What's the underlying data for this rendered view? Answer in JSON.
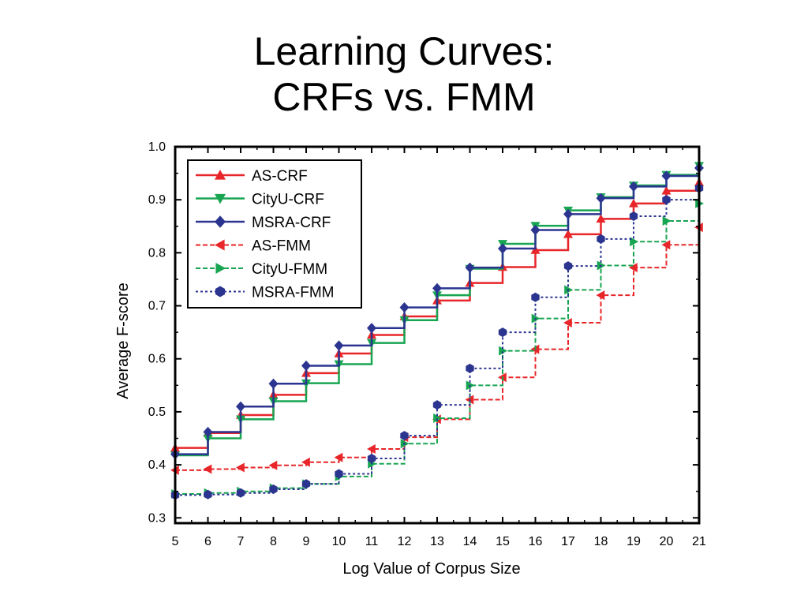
{
  "slide": {
    "title_line1": "Learning Curves:",
    "title_line2": "CRFs vs. FMM"
  },
  "chart_data": {
    "type": "line",
    "title": "",
    "xlabel": "Log Value of Corpus Size",
    "ylabel": "Average F-score",
    "xlim": [
      5,
      21
    ],
    "ylim": [
      0.3,
      1.0
    ],
    "xticks": [
      5,
      6,
      7,
      8,
      9,
      10,
      11,
      12,
      13,
      14,
      15,
      16,
      17,
      18,
      19,
      20,
      21
    ],
    "yticks": [
      0.3,
      0.4,
      0.5,
      0.6,
      0.7,
      0.8,
      0.9,
      1.0
    ],
    "ytick_labels": [
      "0.3",
      "0.4",
      "0.5",
      "0.6",
      "0.7",
      "0.8",
      "0.9",
      "1.0"
    ],
    "step_style": "stairs",
    "legend_position": "top-left",
    "grid": false,
    "x": [
      5,
      6,
      7,
      8,
      9,
      10,
      11,
      12,
      13,
      14,
      15,
      16,
      17,
      18,
      19,
      20,
      21
    ],
    "series": [
      {
        "name": "AS-CRF",
        "color": "#e8262a",
        "dash": "solid",
        "marker": "triangle-up",
        "values": [
          0.432,
          0.46,
          0.494,
          0.532,
          0.573,
          0.61,
          0.645,
          0.68,
          0.71,
          0.743,
          0.773,
          0.805,
          0.835,
          0.864,
          0.893,
          0.917,
          0.933
        ]
      },
      {
        "name": "CityU-CRF",
        "color": "#18a552",
        "dash": "solid",
        "marker": "triangle-down",
        "values": [
          0.418,
          0.45,
          0.486,
          0.52,
          0.554,
          0.59,
          0.63,
          0.673,
          0.72,
          0.77,
          0.817,
          0.851,
          0.88,
          0.905,
          0.927,
          0.947,
          0.964
        ]
      },
      {
        "name": "MSRA-CRF",
        "color": "#2b3590",
        "dash": "solid",
        "marker": "diamond",
        "values": [
          0.42,
          0.462,
          0.51,
          0.553,
          0.587,
          0.625,
          0.658,
          0.697,
          0.733,
          0.772,
          0.808,
          0.843,
          0.873,
          0.903,
          0.925,
          0.945,
          0.96
        ]
      },
      {
        "name": "AS-FMM",
        "color": "#e8262a",
        "dash": "dashed",
        "marker": "triangle-left",
        "values": [
          0.39,
          0.392,
          0.395,
          0.399,
          0.405,
          0.414,
          0.43,
          0.452,
          0.486,
          0.523,
          0.565,
          0.618,
          0.668,
          0.72,
          0.772,
          0.815,
          0.848
        ]
      },
      {
        "name": "CityU-FMM",
        "color": "#18a552",
        "dash": "dashed",
        "marker": "triangle-right",
        "values": [
          0.345,
          0.347,
          0.35,
          0.356,
          0.364,
          0.378,
          0.402,
          0.44,
          0.488,
          0.55,
          0.615,
          0.676,
          0.73,
          0.776,
          0.821,
          0.86,
          0.893
        ]
      },
      {
        "name": "MSRA-FMM",
        "color": "#2b3590",
        "dash": "dotted",
        "marker": "hexagon",
        "values": [
          0.343,
          0.344,
          0.347,
          0.354,
          0.364,
          0.383,
          0.412,
          0.455,
          0.513,
          0.582,
          0.65,
          0.716,
          0.775,
          0.826,
          0.869,
          0.9,
          0.922
        ]
      }
    ]
  }
}
